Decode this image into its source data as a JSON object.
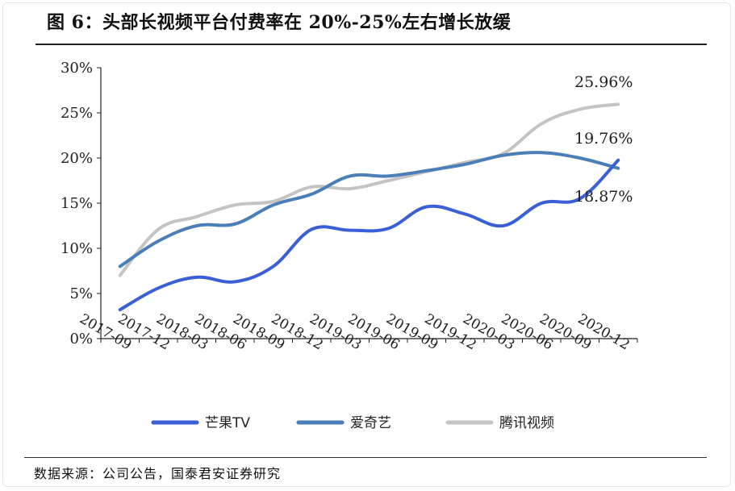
{
  "figure": {
    "title": "图 6：头部长视频平台付费率在 20%-25%左右增长放缓",
    "source": "数据来源：公司公告，国泰君安证券研究"
  },
  "chart_data": {
    "type": "line",
    "categories": [
      "2017-09",
      "2017-12",
      "2018-03",
      "2018-06",
      "2018-09",
      "2018-12",
      "2019-03",
      "2019-06",
      "2019-09",
      "2019-12",
      "2020-03",
      "2020-06",
      "2020-09",
      "2020-12"
    ],
    "series": [
      {
        "name": "芒果TV",
        "color": "#3a5fd6",
        "values": [
          3.2,
          5.6,
          6.8,
          6.3,
          8.0,
          12.1,
          12.0,
          12.2,
          14.6,
          13.8,
          12.5,
          15.0,
          15.5,
          19.76
        ]
      },
      {
        "name": "爱奇艺",
        "color": "#4a7fb8",
        "values": [
          8.0,
          10.8,
          12.5,
          12.7,
          14.8,
          16.0,
          18.0,
          18.0,
          18.6,
          19.3,
          20.3,
          20.6,
          20.0,
          18.87
        ]
      },
      {
        "name": "腾讯视频",
        "color": "#c4c4c4",
        "values": [
          7.0,
          12.1,
          13.5,
          14.8,
          15.2,
          16.8,
          16.6,
          17.5,
          18.5,
          19.5,
          20.5,
          23.8,
          25.4,
          25.96
        ]
      }
    ],
    "ylim": [
      0,
      30
    ],
    "yticks": [
      "0%",
      "5%",
      "10%",
      "15%",
      "20%",
      "25%",
      "30%"
    ],
    "annotations": [
      {
        "text": "25.96%",
        "series": "腾讯视频"
      },
      {
        "text": "19.76%",
        "series": "芒果TV"
      },
      {
        "text": "18.87%",
        "series": "爱奇艺"
      }
    ],
    "grid": false,
    "legend_position": "bottom"
  }
}
